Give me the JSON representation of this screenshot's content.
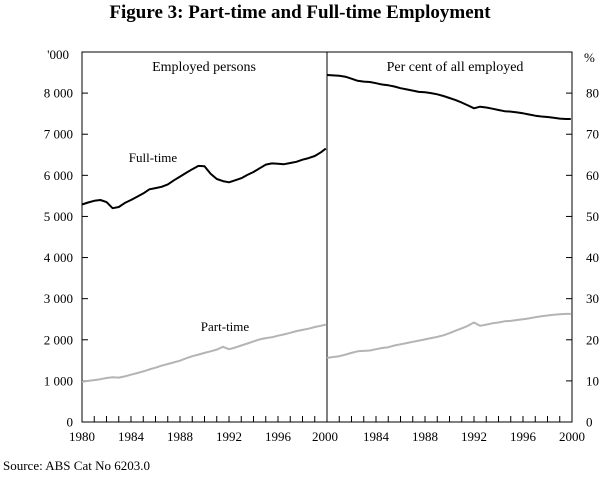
{
  "title": "Figure 3: Part-time and Full-time Employment",
  "source": "Source: ABS Cat No 6203.0",
  "chart_data": [
    {
      "type": "line",
      "panel_title": "Employed persons",
      "y_unit": "'000",
      "ylim": [
        0,
        9000
      ],
      "yticks": [
        "0",
        "1 000",
        "2 000",
        "3 000",
        "4 000",
        "5 000",
        "6 000",
        "7 000",
        "8 000"
      ],
      "ytick_values": [
        0,
        1000,
        2000,
        3000,
        4000,
        5000,
        6000,
        7000,
        8000
      ],
      "xlim": [
        1980,
        2000
      ],
      "xticks": [
        "1980",
        "1984",
        "1988",
        "1992",
        "1996",
        "2000"
      ],
      "xtick_values": [
        1980,
        1984,
        1988,
        1992,
        1996,
        2000
      ],
      "series": [
        {
          "name": "Full-time",
          "label": "Full-time",
          "color": "#000000",
          "x": [
            1980.0,
            1980.5,
            1981.0,
            1981.5,
            1982.0,
            1982.5,
            1983.0,
            1983.5,
            1984.0,
            1984.5,
            1985.0,
            1985.5,
            1986.0,
            1986.5,
            1987.0,
            1987.5,
            1988.0,
            1988.5,
            1989.0,
            1989.5,
            1990.0,
            1990.5,
            1991.0,
            1991.5,
            1992.0,
            1992.5,
            1993.0,
            1993.5,
            1994.0,
            1994.5,
            1995.0,
            1995.5,
            1996.0,
            1996.5,
            1997.0,
            1997.5,
            1998.0,
            1998.5,
            1999.0,
            1999.5,
            1999.9
          ],
          "values": [
            5290,
            5340,
            5380,
            5400,
            5350,
            5200,
            5230,
            5330,
            5400,
            5480,
            5560,
            5660,
            5690,
            5720,
            5780,
            5880,
            5970,
            6060,
            6150,
            6230,
            6220,
            6040,
            5910,
            5860,
            5830,
            5880,
            5930,
            6010,
            6080,
            6170,
            6260,
            6290,
            6280,
            6270,
            6300,
            6330,
            6380,
            6420,
            6470,
            6560,
            6650
          ]
        },
        {
          "name": "Part-time",
          "label": "Part-time",
          "color": "#b4b4b4",
          "x": [
            1980.0,
            1980.5,
            1981.0,
            1981.5,
            1982.0,
            1982.5,
            1983.0,
            1983.5,
            1984.0,
            1984.5,
            1985.0,
            1985.5,
            1986.0,
            1986.5,
            1987.0,
            1987.5,
            1988.0,
            1988.5,
            1989.0,
            1989.5,
            1990.0,
            1990.5,
            1991.0,
            1991.5,
            1992.0,
            1992.5,
            1993.0,
            1993.5,
            1994.0,
            1994.5,
            1995.0,
            1995.5,
            1996.0,
            1996.5,
            1997.0,
            1997.5,
            1998.0,
            1998.5,
            1999.0,
            1999.5,
            1999.9
          ],
          "values": [
            980,
            1000,
            1020,
            1040,
            1070,
            1090,
            1080,
            1110,
            1150,
            1190,
            1230,
            1280,
            1320,
            1370,
            1410,
            1450,
            1490,
            1550,
            1600,
            1640,
            1680,
            1720,
            1760,
            1830,
            1770,
            1810,
            1860,
            1910,
            1960,
            2010,
            2040,
            2060,
            2100,
            2130,
            2170,
            2210,
            2240,
            2270,
            2310,
            2340,
            2370
          ]
        }
      ]
    },
    {
      "type": "line",
      "panel_title": "Per cent of all employed",
      "y_unit": "%",
      "ylim": [
        0,
        90
      ],
      "yticks": [
        "0",
        "10",
        "20",
        "30",
        "40",
        "50",
        "60",
        "70",
        "80"
      ],
      "ytick_values": [
        0,
        10,
        20,
        30,
        40,
        50,
        60,
        70,
        80
      ],
      "xlim": [
        1980,
        2000
      ],
      "xticks": [
        "1984",
        "1988",
        "1992",
        "1996",
        "2000"
      ],
      "xtick_values": [
        1984,
        1988,
        1992,
        1996,
        2000
      ],
      "series": [
        {
          "name": "Full-time",
          "color": "#000000",
          "x": [
            1980.0,
            1980.5,
            1981.0,
            1981.5,
            1982.0,
            1982.5,
            1983.0,
            1983.5,
            1984.0,
            1984.5,
            1985.0,
            1985.5,
            1986.0,
            1986.5,
            1987.0,
            1987.5,
            1988.0,
            1988.5,
            1989.0,
            1989.5,
            1990.0,
            1990.5,
            1991.0,
            1991.5,
            1992.0,
            1992.5,
            1993.0,
            1993.5,
            1994.0,
            1994.5,
            1995.0,
            1995.5,
            1996.0,
            1996.5,
            1997.0,
            1997.5,
            1998.0,
            1998.5,
            1999.0,
            1999.5,
            1999.9
          ],
          "values": [
            84.4,
            84.3,
            84.2,
            84.0,
            83.5,
            83.0,
            82.8,
            82.7,
            82.4,
            82.1,
            81.9,
            81.6,
            81.2,
            80.9,
            80.6,
            80.3,
            80.2,
            80.0,
            79.7,
            79.3,
            78.8,
            78.3,
            77.7,
            77.0,
            76.3,
            76.7,
            76.5,
            76.2,
            75.9,
            75.6,
            75.5,
            75.3,
            75.1,
            74.8,
            74.5,
            74.3,
            74.2,
            74.0,
            73.8,
            73.7,
            73.7
          ]
        },
        {
          "name": "Part-time",
          "color": "#b4b4b4",
          "x": [
            1980.0,
            1980.5,
            1981.0,
            1981.5,
            1982.0,
            1982.5,
            1983.0,
            1983.5,
            1984.0,
            1984.5,
            1985.0,
            1985.5,
            1986.0,
            1986.5,
            1987.0,
            1987.5,
            1988.0,
            1988.5,
            1989.0,
            1989.5,
            1990.0,
            1990.5,
            1991.0,
            1991.5,
            1992.0,
            1992.5,
            1993.0,
            1993.5,
            1994.0,
            1994.5,
            1995.0,
            1995.5,
            1996.0,
            1996.5,
            1997.0,
            1997.5,
            1998.0,
            1998.5,
            1999.0,
            1999.5,
            1999.9
          ],
          "values": [
            15.6,
            15.8,
            16.0,
            16.4,
            16.8,
            17.2,
            17.3,
            17.4,
            17.7,
            18.0,
            18.2,
            18.6,
            18.9,
            19.2,
            19.5,
            19.8,
            20.1,
            20.4,
            20.7,
            21.1,
            21.6,
            22.2,
            22.8,
            23.4,
            24.2,
            23.4,
            23.7,
            24.0,
            24.2,
            24.5,
            24.6,
            24.8,
            25.0,
            25.2,
            25.5,
            25.7,
            25.9,
            26.1,
            26.2,
            26.3,
            26.3
          ]
        }
      ]
    }
  ]
}
